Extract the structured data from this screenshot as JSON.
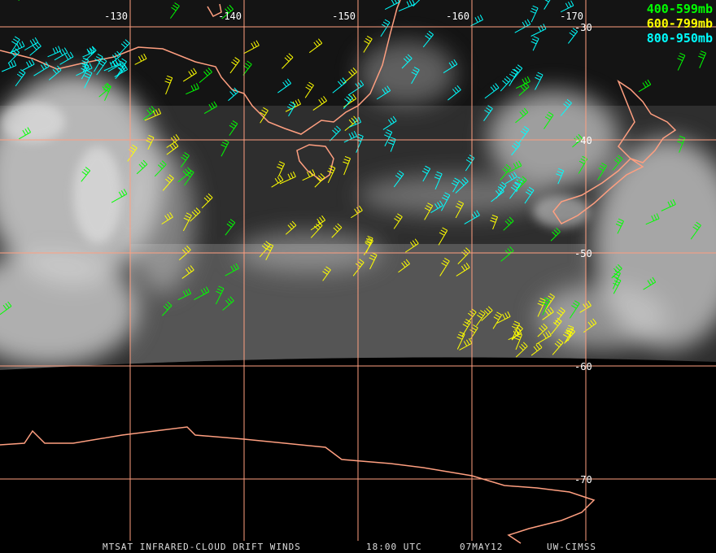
{
  "map": {
    "longitude_lines": [
      -130,
      -140,
      -150,
      -160,
      -170
    ],
    "latitude_lines": [
      -30,
      -40,
      -50,
      -60,
      -70
    ],
    "legend": [
      {
        "label": "400-599mb",
        "color": "#00ff00"
      },
      {
        "label": "600-799mb",
        "color": "#ffff00"
      },
      {
        "label": "800-950mb",
        "color": "#00ffff"
      }
    ],
    "footer": [
      "MTSAT INFRARED-CLOUD DRIFT WINDS",
      "18:00 UTC",
      "07MAY12",
      "UW-CIMSS"
    ]
  }
}
